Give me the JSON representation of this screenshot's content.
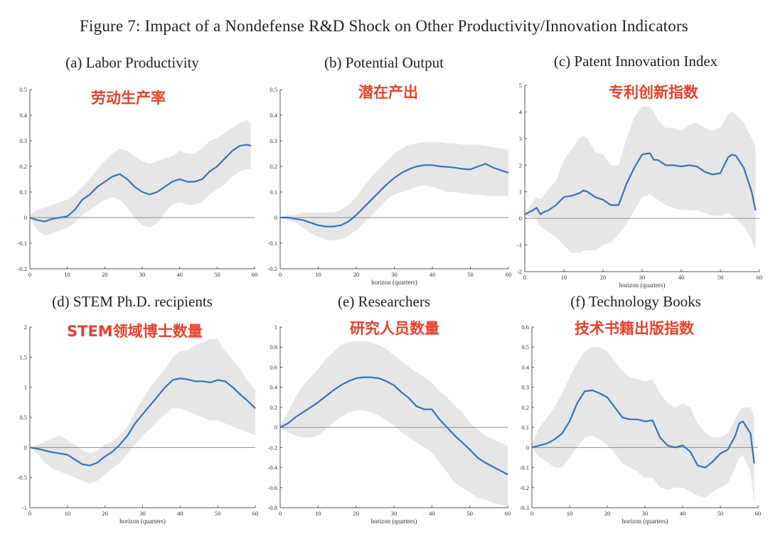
{
  "figure_title": "Figure 7: Impact of a Nondefense R&D Shock on Other Productivity/Innovation Indicators",
  "chart_data": [
    {
      "type": "area",
      "title": "(a) Labor Productivity",
      "annotation": "劳动生产率",
      "xlabel": "",
      "ylabel": "",
      "xlim": [
        0,
        60
      ],
      "ylim": [
        -0.2,
        0.5
      ],
      "xticks": [
        0,
        10,
        20,
        30,
        40,
        50,
        60
      ],
      "yticks": [
        -0.2,
        -0.1,
        0,
        0.1,
        0.2,
        0.3,
        0.4,
        0.5
      ],
      "x": [
        0,
        2,
        4,
        6,
        8,
        10,
        12,
        14,
        16,
        18,
        20,
        22,
        24,
        26,
        28,
        30,
        32,
        34,
        36,
        38,
        40,
        42,
        44,
        46,
        48,
        50,
        52,
        54,
        56,
        58,
        59
      ],
      "series": [
        {
          "values": [
            0,
            -0.01,
            -0.015,
            -0.005,
            0,
            0.005,
            0.03,
            0.07,
            0.09,
            0.12,
            0.14,
            0.16,
            0.17,
            0.15,
            0.12,
            0.1,
            0.09,
            0.1,
            0.12,
            0.14,
            0.15,
            0.14,
            0.14,
            0.15,
            0.18,
            0.2,
            0.23,
            0.26,
            0.28,
            0.285,
            0.28
          ]
        }
      ],
      "band_lower": [
        0,
        -0.05,
        -0.07,
        -0.06,
        -0.05,
        -0.04,
        -0.02,
        0.01,
        0.03,
        0.05,
        0.07,
        0.08,
        0.07,
        0.04,
        0.0,
        -0.03,
        -0.04,
        -0.02,
        0.02,
        0.05,
        0.06,
        0.05,
        0.05,
        0.06,
        0.09,
        0.11,
        0.13,
        0.16,
        0.18,
        0.19,
        0.19
      ],
      "band_upper": [
        0.01,
        0.03,
        0.04,
        0.05,
        0.06,
        0.07,
        0.09,
        0.12,
        0.15,
        0.19,
        0.22,
        0.25,
        0.27,
        0.26,
        0.24,
        0.22,
        0.21,
        0.22,
        0.23,
        0.24,
        0.26,
        0.25,
        0.25,
        0.27,
        0.3,
        0.31,
        0.33,
        0.35,
        0.37,
        0.38,
        0.37
      ]
    },
    {
      "type": "area",
      "title": "(b) Potential Output",
      "annotation": "潜在产出",
      "xlabel": "horizon (quarters)",
      "ylabel": "",
      "xlim": [
        0,
        60
      ],
      "ylim": [
        -0.2,
        0.5
      ],
      "xticks": [
        0,
        10,
        20,
        30,
        40,
        50,
        60
      ],
      "yticks": [
        -0.2,
        -0.1,
        0,
        0.1,
        0.2,
        0.3,
        0.4,
        0.5
      ],
      "x": [
        0,
        2,
        4,
        6,
        8,
        10,
        12,
        14,
        16,
        18,
        20,
        22,
        24,
        26,
        28,
        30,
        32,
        34,
        36,
        38,
        40,
        42,
        44,
        46,
        48,
        50,
        52,
        54,
        56,
        58,
        60
      ],
      "series": [
        {
          "values": [
            0,
            0,
            -0.005,
            -0.01,
            -0.02,
            -0.03,
            -0.035,
            -0.035,
            -0.03,
            -0.015,
            0.01,
            0.04,
            0.07,
            0.1,
            0.13,
            0.155,
            0.175,
            0.19,
            0.2,
            0.205,
            0.205,
            0.2,
            0.198,
            0.195,
            0.19,
            0.188,
            0.2,
            0.21,
            0.195,
            0.185,
            0.175
          ]
        }
      ],
      "band_lower": [
        0,
        -0.01,
        -0.02,
        -0.04,
        -0.06,
        -0.075,
        -0.085,
        -0.09,
        -0.085,
        -0.07,
        -0.05,
        -0.02,
        0.01,
        0.04,
        0.07,
        0.09,
        0.1,
        0.11,
        0.12,
        0.125,
        0.12,
        0.11,
        0.1,
        0.1,
        0.095,
        0.09,
        0.09,
        0.085,
        0.085,
        0.085,
        0.085
      ],
      "band_upper": [
        0,
        0.01,
        0.01,
        0.02,
        0.02,
        0.02,
        0.02,
        0.02,
        0.03,
        0.05,
        0.08,
        0.12,
        0.16,
        0.19,
        0.22,
        0.25,
        0.27,
        0.285,
        0.29,
        0.295,
        0.295,
        0.295,
        0.29,
        0.29,
        0.285,
        0.285,
        0.285,
        0.28,
        0.275,
        0.27,
        0.265
      ]
    },
    {
      "type": "area",
      "title": "(c) Patent Innovation Index",
      "annotation": "专利创新指数",
      "xlabel": "horizon (quarters)",
      "ylabel": "",
      "xlim": [
        0,
        60
      ],
      "ylim": [
        -2,
        5
      ],
      "xticks": [
        0,
        10,
        20,
        30,
        40,
        50,
        60
      ],
      "yticks": [
        -2,
        -1,
        0,
        1,
        2,
        3,
        4,
        5
      ],
      "x": [
        0,
        2,
        3,
        4,
        5,
        6,
        8,
        10,
        12,
        14,
        15,
        16,
        18,
        20,
        22,
        24,
        26,
        28,
        30,
        32,
        33,
        34,
        36,
        38,
        40,
        42,
        44,
        46,
        48,
        50,
        52,
        53,
        54,
        56,
        58,
        59
      ],
      "series": [
        {
          "values": [
            0.15,
            0.3,
            0.4,
            0.15,
            0.25,
            0.3,
            0.5,
            0.8,
            0.85,
            0.95,
            1.05,
            1.0,
            0.8,
            0.7,
            0.5,
            0.5,
            1.3,
            1.9,
            2.4,
            2.45,
            2.2,
            2.2,
            2.0,
            2.0,
            1.95,
            2.0,
            1.95,
            1.75,
            1.65,
            1.7,
            2.3,
            2.4,
            2.35,
            1.9,
            1.0,
            0.3
          ]
        }
      ],
      "band_lower": [
        0.1,
        0.05,
        0,
        -0.3,
        -0.4,
        -0.5,
        -0.7,
        -1.0,
        -1.3,
        -1.3,
        -1.2,
        -1.2,
        -1.2,
        -1.0,
        -0.9,
        -0.6,
        -0.2,
        0.3,
        0.8,
        0.9,
        0.8,
        0.7,
        0.5,
        0.4,
        0.3,
        0.3,
        0.3,
        0.2,
        0.1,
        0.1,
        0.2,
        0.1,
        0.0,
        -0.3,
        -0.8,
        -1.2
      ],
      "band_upper": [
        0.2,
        0.6,
        0.8,
        0.7,
        0.9,
        1.1,
        1.4,
        2.2,
        2.6,
        3.0,
        3.1,
        3.0,
        2.5,
        2.4,
        2.0,
        2.0,
        3.0,
        3.8,
        4.2,
        4.2,
        4.0,
        3.7,
        3.4,
        3.4,
        3.3,
        3.5,
        3.6,
        3.4,
        3.3,
        3.4,
        3.9,
        4.0,
        3.9,
        3.6,
        3.0,
        2.7
      ]
    },
    {
      "type": "area",
      "title": "(d) STEM Ph.D. recipients",
      "annotation": "STEM领域博士数量",
      "xlabel": "horizon (quarters)",
      "ylabel": "",
      "xlim": [
        0,
        60
      ],
      "ylim": [
        -1,
        2
      ],
      "xticks": [
        0,
        10,
        20,
        30,
        40,
        50,
        60
      ],
      "yticks": [
        -1,
        -0.5,
        0,
        0.5,
        1,
        1.5,
        2
      ],
      "x": [
        0,
        2,
        4,
        6,
        8,
        10,
        12,
        14,
        16,
        18,
        20,
        22,
        24,
        26,
        28,
        30,
        32,
        34,
        36,
        38,
        40,
        42,
        44,
        46,
        48,
        50,
        52,
        54,
        56,
        58,
        60
      ],
      "series": [
        {
          "values": [
            0,
            -0.02,
            -0.05,
            -0.08,
            -0.1,
            -0.12,
            -0.2,
            -0.28,
            -0.3,
            -0.25,
            -0.15,
            -0.07,
            0.05,
            0.2,
            0.4,
            0.55,
            0.7,
            0.85,
            1.0,
            1.12,
            1.15,
            1.13,
            1.1,
            1.1,
            1.08,
            1.12,
            1.1,
            1.0,
            0.88,
            0.77,
            0.65
          ]
        }
      ],
      "band_lower": [
        0,
        -0.1,
        -0.25,
        -0.35,
        -0.4,
        -0.45,
        -0.5,
        -0.55,
        -0.6,
        -0.55,
        -0.45,
        -0.35,
        -0.25,
        -0.1,
        0.05,
        0.2,
        0.3,
        0.45,
        0.55,
        0.65,
        0.65,
        0.6,
        0.55,
        0.5,
        0.45,
        0.45,
        0.4,
        0.35,
        0.3,
        0.25,
        0.2
      ],
      "band_upper": [
        0,
        0.05,
        0.1,
        0.15,
        0.2,
        0.12,
        0.05,
        -0.05,
        -0.1,
        -0.05,
        0.05,
        0.1,
        0.2,
        0.35,
        0.6,
        0.8,
        1.0,
        1.15,
        1.3,
        1.5,
        1.6,
        1.62,
        1.7,
        1.75,
        1.8,
        1.8,
        1.6,
        1.45,
        1.3,
        1.1,
        0.95
      ]
    },
    {
      "type": "area",
      "title": "(e) Researchers",
      "annotation": "研究人员数量",
      "xlabel": "horizon (quarters)",
      "ylabel": "",
      "xlim": [
        0,
        60
      ],
      "ylim": [
        -0.8,
        1
      ],
      "xticks": [
        0,
        10,
        20,
        30,
        40,
        50,
        60
      ],
      "yticks": [
        -0.8,
        -0.6,
        -0.4,
        -0.2,
        0,
        0.2,
        0.4,
        0.6,
        0.8,
        1
      ],
      "x": [
        0,
        2,
        4,
        6,
        8,
        10,
        12,
        14,
        16,
        18,
        20,
        22,
        24,
        26,
        28,
        30,
        32,
        34,
        36,
        38,
        40,
        42,
        44,
        46,
        48,
        50,
        52,
        54,
        56,
        58,
        60
      ],
      "series": [
        {
          "values": [
            0,
            0.04,
            0.1,
            0.15,
            0.2,
            0.25,
            0.31,
            0.37,
            0.42,
            0.46,
            0.49,
            0.5,
            0.5,
            0.49,
            0.46,
            0.42,
            0.35,
            0.29,
            0.21,
            0.18,
            0.18,
            0.08,
            0.0,
            -0.08,
            -0.15,
            -0.22,
            -0.3,
            -0.35,
            -0.39,
            -0.43,
            -0.47
          ]
        }
      ],
      "band_lower": [
        0,
        -0.05,
        -0.08,
        -0.1,
        -0.1,
        -0.08,
        -0.02,
        0.05,
        0.1,
        0.15,
        0.17,
        0.17,
        0.15,
        0.12,
        0.07,
        0.02,
        -0.05,
        -0.1,
        -0.15,
        -0.2,
        -0.25,
        -0.35,
        -0.45,
        -0.55,
        -0.6,
        -0.65,
        -0.7,
        -0.72,
        -0.75,
        -0.77,
        -0.78
      ],
      "band_upper": [
        0.02,
        0.15,
        0.3,
        0.42,
        0.5,
        0.58,
        0.68,
        0.75,
        0.82,
        0.85,
        0.86,
        0.86,
        0.85,
        0.82,
        0.78,
        0.72,
        0.66,
        0.6,
        0.55,
        0.5,
        0.45,
        0.36,
        0.3,
        0.22,
        0.15,
        0.05,
        -0.02,
        -0.08,
        -0.12,
        -0.15,
        -0.18
      ]
    },
    {
      "type": "area",
      "title": "(f) Technology Books",
      "annotation": "技术书籍出版指数",
      "xlabel": "horizon (quarters)",
      "ylabel": "",
      "xlim": [
        0,
        60
      ],
      "ylim": [
        -0.3,
        0.6
      ],
      "xticks": [
        0,
        10,
        20,
        30,
        40,
        50,
        60
      ],
      "yticks": [
        -0.3,
        -0.2,
        -0.1,
        0,
        0.1,
        0.2,
        0.3,
        0.4,
        0.5,
        0.6
      ],
      "x": [
        0,
        2,
        4,
        6,
        8,
        10,
        12,
        14,
        16,
        18,
        20,
        22,
        24,
        26,
        28,
        30,
        32,
        34,
        36,
        38,
        40,
        42,
        44,
        46,
        48,
        50,
        52,
        54,
        55,
        56,
        58,
        59
      ],
      "series": [
        {
          "values": [
            0,
            0.01,
            0.02,
            0.04,
            0.07,
            0.13,
            0.22,
            0.28,
            0.285,
            0.27,
            0.25,
            0.2,
            0.15,
            0.14,
            0.14,
            0.13,
            0.135,
            0.05,
            0.01,
            0.0,
            0.01,
            -0.02,
            -0.09,
            -0.1,
            -0.07,
            -0.03,
            -0.01,
            0.06,
            0.12,
            0.13,
            0.07,
            -0.08
          ]
        }
      ],
      "band_lower": [
        0,
        -0.05,
        -0.07,
        -0.1,
        -0.1,
        -0.05,
        0.0,
        0.05,
        0.06,
        0.04,
        0.01,
        -0.03,
        -0.08,
        -0.1,
        -0.12,
        -0.15,
        -0.15,
        -0.2,
        -0.21,
        -0.2,
        -0.2,
        -0.22,
        -0.24,
        -0.25,
        -0.22,
        -0.2,
        -0.18,
        -0.1,
        -0.05,
        -0.04,
        -0.12,
        -0.28
      ],
      "band_upper": [
        0.02,
        0.1,
        0.15,
        0.2,
        0.27,
        0.35,
        0.42,
        0.48,
        0.5,
        0.5,
        0.48,
        0.43,
        0.38,
        0.35,
        0.34,
        0.33,
        0.34,
        0.27,
        0.22,
        0.2,
        0.22,
        0.2,
        0.12,
        0.07,
        0.05,
        0.05,
        0.07,
        0.14,
        0.18,
        0.2,
        0.2,
        0.15
      ]
    }
  ]
}
